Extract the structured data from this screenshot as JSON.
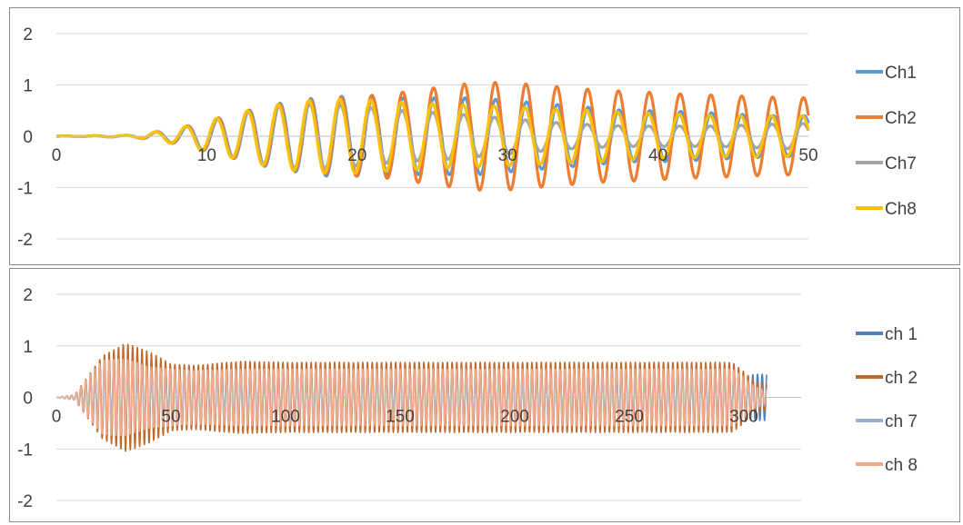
{
  "chart_data": [
    {
      "type": "line",
      "title": "",
      "xlabel": "",
      "ylabel": "",
      "xlim": [
        0,
        50
      ],
      "ylim": [
        -2,
        2
      ],
      "x_ticks": [
        "0",
        "10",
        "20",
        "30",
        "40",
        "50"
      ],
      "y_ticks": [
        "2",
        "1",
        "0",
        "-1",
        "-2"
      ],
      "grid": "horizontal",
      "legend_position": "right",
      "series": [
        {
          "name": "Ch1",
          "color": "#5b9bd5",
          "x": [
            0,
            5,
            6,
            8,
            10,
            12,
            14,
            16,
            18,
            20,
            22,
            24,
            26,
            28,
            30,
            32,
            34,
            36,
            38,
            40,
            42,
            44,
            46,
            48,
            50
          ],
          "amplitude": [
            0,
            0.02,
            0.06,
            0.15,
            0.3,
            0.45,
            0.6,
            0.7,
            0.78,
            0.78,
            0.75,
            0.75,
            0.75,
            0.75,
            0.7,
            0.65,
            0.6,
            0.55,
            0.5,
            0.5,
            0.48,
            0.45,
            0.42,
            0.4,
            0.4
          ]
        },
        {
          "name": "Ch2",
          "color": "#ed7d31",
          "x": [
            0,
            5,
            6,
            8,
            10,
            12,
            14,
            16,
            18,
            20,
            22,
            24,
            26,
            28,
            30,
            32,
            34,
            36,
            38,
            40,
            42,
            44,
            46,
            48,
            50
          ],
          "amplitude": [
            0,
            0.02,
            0.06,
            0.15,
            0.3,
            0.45,
            0.58,
            0.68,
            0.74,
            0.78,
            0.82,
            0.9,
            0.98,
            1.05,
            1.05,
            1.0,
            0.95,
            0.9,
            0.88,
            0.85,
            0.82,
            0.8,
            0.78,
            0.76,
            0.75
          ]
        },
        {
          "name": "Ch7",
          "color": "#a5a5a5",
          "x": [
            0,
            5,
            6,
            8,
            10,
            12,
            14,
            16,
            18,
            20,
            22,
            24,
            26,
            28,
            30,
            32,
            34,
            36,
            38,
            40,
            42,
            44,
            46,
            48,
            50
          ],
          "amplitude": [
            0,
            0.02,
            0.05,
            0.14,
            0.28,
            0.42,
            0.55,
            0.62,
            0.62,
            0.58,
            0.52,
            0.48,
            0.45,
            0.4,
            0.35,
            0.3,
            0.25,
            0.22,
            0.2,
            0.2,
            0.2,
            0.2,
            0.22,
            0.24,
            0.25
          ]
        },
        {
          "name": "Ch8",
          "color": "#ffc000",
          "x": [
            0,
            5,
            6,
            8,
            10,
            12,
            14,
            16,
            18,
            20,
            22,
            24,
            26,
            28,
            30,
            32,
            34,
            36,
            38,
            40,
            42,
            44,
            46,
            48,
            50
          ],
          "amplitude": [
            0,
            0.02,
            0.06,
            0.15,
            0.3,
            0.45,
            0.58,
            0.68,
            0.72,
            0.72,
            0.68,
            0.65,
            0.62,
            0.6,
            0.58,
            0.55,
            0.52,
            0.5,
            0.46,
            0.44,
            0.42,
            0.4,
            0.4,
            0.4,
            0.4
          ]
        }
      ]
    },
    {
      "type": "line",
      "title": "",
      "xlabel": "",
      "ylabel": "",
      "xlim": [
        0,
        325
      ],
      "ylim": [
        -2,
        2
      ],
      "x_ticks": [
        "0",
        "50",
        "100",
        "150",
        "200",
        "250",
        "300"
      ],
      "x_tick_values": [
        0,
        50,
        100,
        150,
        200,
        250,
        300
      ],
      "y_ticks": [
        "2",
        "1",
        "0",
        "-1",
        "-2"
      ],
      "grid": "horizontal",
      "legend_position": "right",
      "series": [
        {
          "name": "ch 1",
          "color": "#4f81bd",
          "x": [
            0,
            8,
            12,
            20,
            30,
            40,
            50,
            60,
            80,
            100,
            150,
            200,
            250,
            295,
            300,
            305,
            310
          ],
          "amplitude": [
            0,
            0.05,
            0.3,
            0.75,
            0.8,
            0.7,
            0.6,
            0.55,
            0.55,
            0.55,
            0.55,
            0.55,
            0.55,
            0.55,
            0.4,
            0.45,
            0.45
          ]
        },
        {
          "name": "ch 2",
          "color": "#c0682a",
          "x": [
            0,
            8,
            12,
            20,
            30,
            40,
            50,
            60,
            80,
            100,
            150,
            200,
            250,
            295,
            300,
            305,
            310
          ],
          "amplitude": [
            0,
            0.05,
            0.3,
            0.8,
            1.05,
            0.9,
            0.65,
            0.62,
            0.7,
            0.68,
            0.68,
            0.68,
            0.68,
            0.68,
            0.5,
            0.3,
            0.25
          ]
        },
        {
          "name": "ch 7",
          "color": "#95b3d7",
          "x": [
            0,
            8,
            12,
            20,
            30,
            40,
            50,
            60,
            80,
            100,
            150,
            200,
            250,
            295,
            300,
            305,
            310
          ],
          "amplitude": [
            0,
            0.05,
            0.25,
            0.55,
            0.55,
            0.45,
            0.4,
            0.4,
            0.4,
            0.4,
            0.4,
            0.4,
            0.4,
            0.4,
            0.3,
            0.2,
            0.15
          ]
        },
        {
          "name": "ch 8",
          "color": "#f0a989",
          "x": [
            0,
            8,
            12,
            20,
            30,
            40,
            50,
            60,
            80,
            100,
            150,
            200,
            250,
            295,
            300,
            305,
            310
          ],
          "amplitude": [
            0,
            0.05,
            0.3,
            0.72,
            0.75,
            0.6,
            0.55,
            0.52,
            0.55,
            0.55,
            0.55,
            0.55,
            0.55,
            0.55,
            0.4,
            0.2,
            0.1
          ]
        }
      ]
    }
  ]
}
